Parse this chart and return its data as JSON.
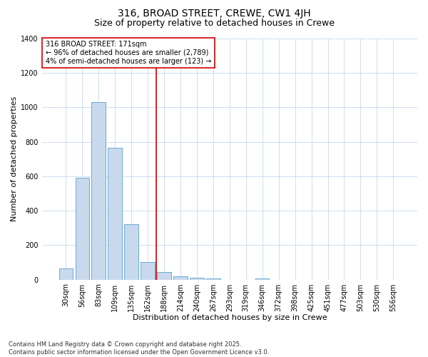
{
  "title1": "316, BROAD STREET, CREWE, CW1 4JH",
  "title2": "Size of property relative to detached houses in Crewe",
  "xlabel": "Distribution of detached houses by size in Crewe",
  "ylabel": "Number of detached properties",
  "categories": [
    "30sqm",
    "56sqm",
    "83sqm",
    "109sqm",
    "135sqm",
    "162sqm",
    "188sqm",
    "214sqm",
    "240sqm",
    "267sqm",
    "293sqm",
    "319sqm",
    "346sqm",
    "372sqm",
    "398sqm",
    "425sqm",
    "451sqm",
    "477sqm",
    "503sqm",
    "530sqm",
    "556sqm"
  ],
  "values": [
    65,
    590,
    1030,
    765,
    320,
    100,
    45,
    20,
    10,
    5,
    0,
    0,
    5,
    0,
    0,
    0,
    0,
    0,
    0,
    0,
    0
  ],
  "bar_color": "#c8d9ee",
  "bar_edge_color": "#6aabd2",
  "plot_bg_color": "#ffffff",
  "fig_bg_color": "#ffffff",
  "grid_color": "#c8d9ee",
  "ylim": [
    0,
    1400
  ],
  "yticks": [
    0,
    200,
    400,
    600,
    800,
    1000,
    1200,
    1400
  ],
  "ref_line_x": 5.5,
  "ref_line_color": "#cc0000",
  "annotation_title": "316 BROAD STREET: 171sqm",
  "annotation_line1": "← 96% of detached houses are smaller (2,789)",
  "annotation_line2": "4% of semi-detached houses are larger (123) →",
  "footnote": "Contains HM Land Registry data © Crown copyright and database right 2025.\nContains public sector information licensed under the Open Government Licence v3.0.",
  "title1_fontsize": 10,
  "title2_fontsize": 9,
  "xlabel_fontsize": 8,
  "ylabel_fontsize": 8,
  "tick_fontsize": 7,
  "annotation_fontsize": 7,
  "footnote_fontsize": 6
}
